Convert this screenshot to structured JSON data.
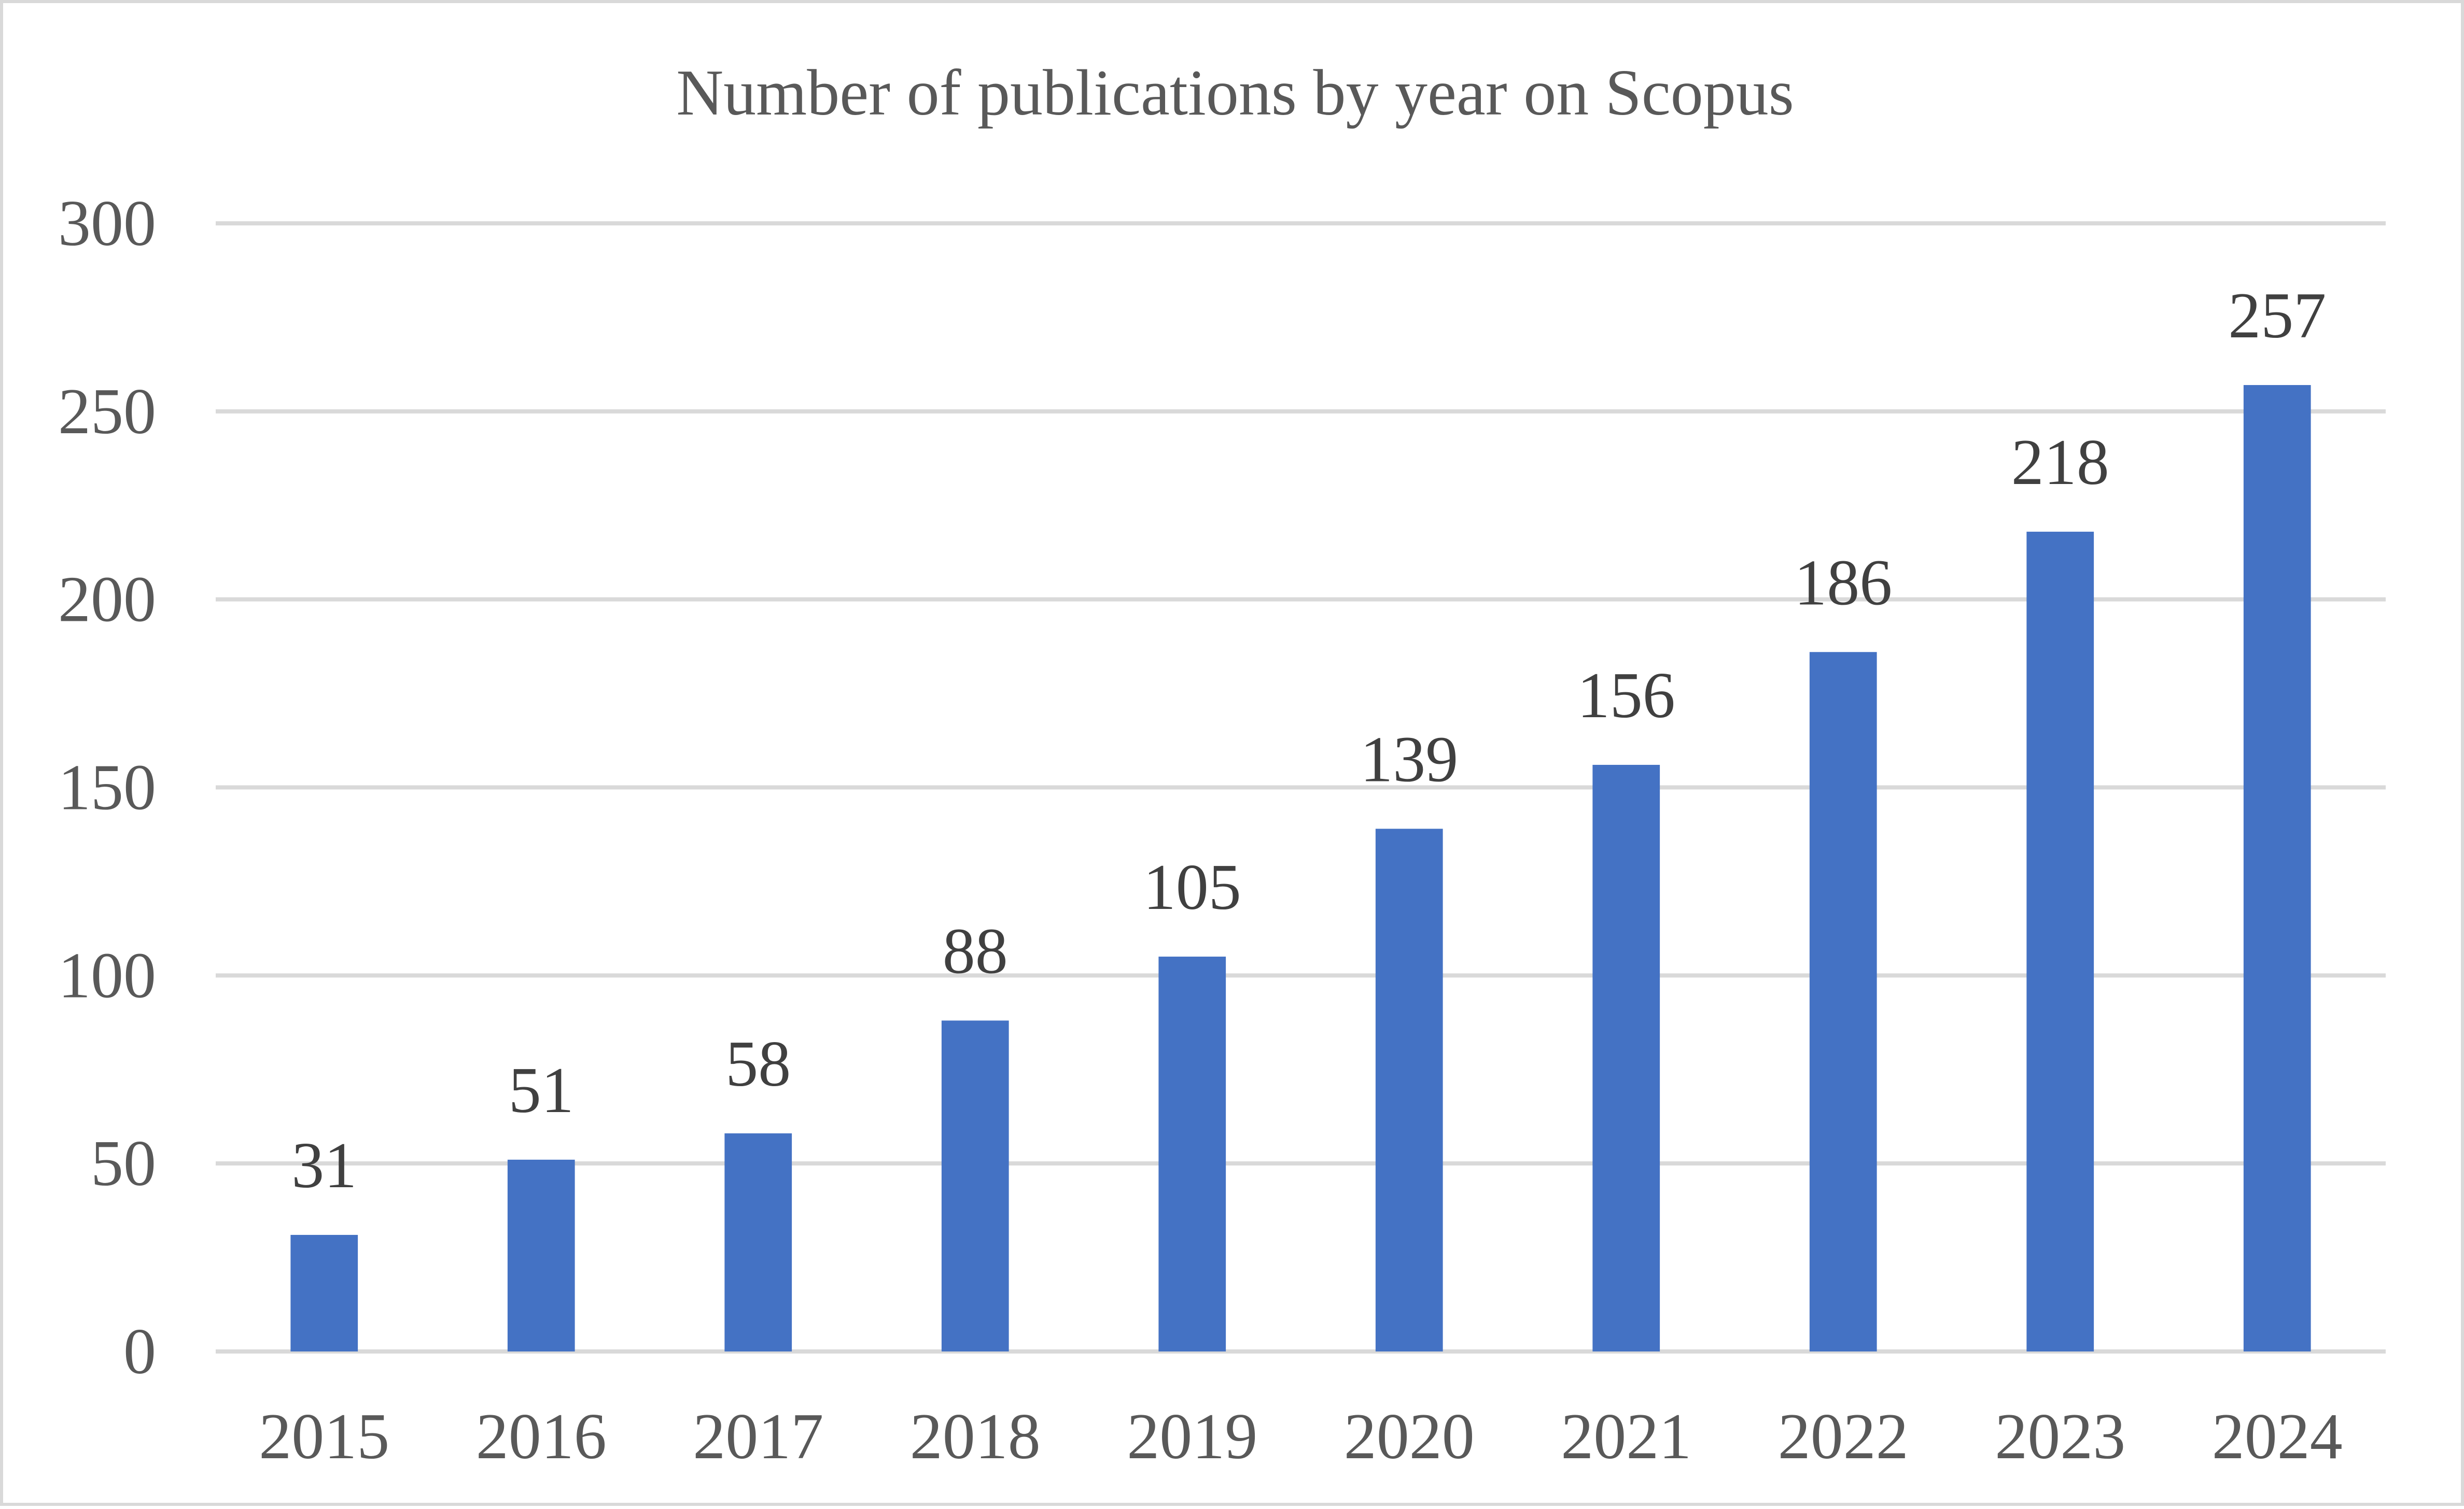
{
  "chart_data": {
    "type": "bar",
    "title": "Number of publications by year on Scopus",
    "xlabel": "",
    "ylabel": "",
    "categories": [
      "2015",
      "2016",
      "2017",
      "2018",
      "2019",
      "2020",
      "2021",
      "2022",
      "2023",
      "2024"
    ],
    "values": [
      31,
      51,
      58,
      88,
      105,
      139,
      156,
      186,
      218,
      257
    ],
    "data_labels": [
      "31",
      "51",
      "58",
      "88",
      "105",
      "139",
      "156",
      "186",
      "218",
      "257"
    ],
    "y_ticks": [
      "0",
      "50",
      "100",
      "150",
      "200",
      "250",
      "300"
    ],
    "ylim": [
      0,
      300
    ],
    "grid": true,
    "legend": "none",
    "bar_color": "#4472c4",
    "grid_color": "#d9d9d9"
  }
}
